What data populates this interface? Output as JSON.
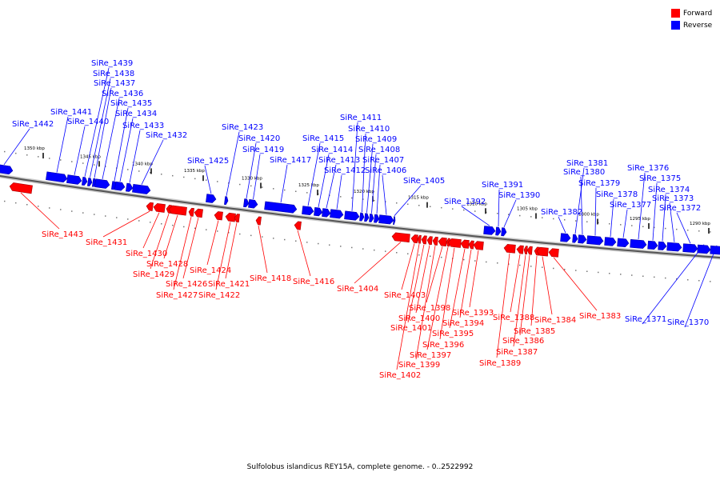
{
  "caption": "Sulfolobus islandicus REY15A, complete genome. - 0..2522992",
  "colors": {
    "forward": "#ff0000",
    "reverse": "#0000ff",
    "backbone": "#808080",
    "leader": "#000000"
  },
  "legend": [
    {
      "label": "Forward",
      "color": "#ff0000"
    },
    {
      "label": "Reverse",
      "color": "#0000ff"
    }
  ],
  "scale": [
    {
      "label": "1350 kbp"
    },
    {
      "label": "1345 kbp"
    },
    {
      "label": "1340 kbp"
    },
    {
      "label": "1335 kbp"
    },
    {
      "label": "1330 kbp"
    },
    {
      "label": "1325 kbp"
    },
    {
      "label": "1320 kbp"
    },
    {
      "label": "1315 kbp"
    },
    {
      "label": "1310 kbp"
    },
    {
      "label": "1305 kbp"
    },
    {
      "label": "1300 kbp"
    },
    {
      "label": "1295 kbp"
    },
    {
      "label": "1290 kbp"
    }
  ],
  "genes": [
    {
      "label": "SiRe_1443",
      "strand": "forward"
    },
    {
      "label": "SiRe_1442",
      "strand": "reverse"
    },
    {
      "label": "SiRe_1441",
      "strand": "reverse"
    },
    {
      "label": "SiRe_1440",
      "strand": "reverse"
    },
    {
      "label": "SiRe_1439",
      "strand": "reverse"
    },
    {
      "label": "SiRe_1438",
      "strand": "reverse"
    },
    {
      "label": "SiRe_1437",
      "strand": "reverse"
    },
    {
      "label": "SiRe_1436",
      "strand": "reverse"
    },
    {
      "label": "SiRe_1435",
      "strand": "reverse"
    },
    {
      "label": "SiRe_1434",
      "strand": "reverse"
    },
    {
      "label": "SiRe_1433",
      "strand": "reverse"
    },
    {
      "label": "SiRe_1432",
      "strand": "reverse"
    },
    {
      "label": "SiRe_1431",
      "strand": "forward"
    },
    {
      "label": "SiRe_1430",
      "strand": "forward"
    },
    {
      "label": "SiRe_1429",
      "strand": "forward"
    },
    {
      "label": "SiRe_1428",
      "strand": "forward"
    },
    {
      "label": "SiRe_1427",
      "strand": "forward"
    },
    {
      "label": "SiRe_1426",
      "strand": "forward"
    },
    {
      "label": "SiRe_1425",
      "strand": "reverse"
    },
    {
      "label": "SiRe_1424",
      "strand": "forward"
    },
    {
      "label": "SiRe_1423",
      "strand": "reverse"
    },
    {
      "label": "SiRe_1422",
      "strand": "forward"
    },
    {
      "label": "SiRe_1421",
      "strand": "forward"
    },
    {
      "label": "SiRe_1420",
      "strand": "reverse"
    },
    {
      "label": "SiRe_1419",
      "strand": "reverse"
    },
    {
      "label": "SiRe_1418",
      "strand": "forward"
    },
    {
      "label": "SiRe_1417",
      "strand": "reverse"
    },
    {
      "label": "SiRe_1416",
      "strand": "forward"
    },
    {
      "label": "SiRe_1415",
      "strand": "reverse"
    },
    {
      "label": "SiRe_1414",
      "strand": "reverse"
    },
    {
      "label": "SiRe_1413",
      "strand": "reverse"
    },
    {
      "label": "SiRe_1412",
      "strand": "reverse"
    },
    {
      "label": "SiRe_1411",
      "strand": "reverse"
    },
    {
      "label": "SiRe_1410",
      "strand": "reverse"
    },
    {
      "label": "SiRe_1409",
      "strand": "reverse"
    },
    {
      "label": "SiRe_1408",
      "strand": "reverse"
    },
    {
      "label": "SiRe_1407",
      "strand": "reverse"
    },
    {
      "label": "SiRe_1406",
      "strand": "reverse"
    },
    {
      "label": "SiRe_1405",
      "strand": "reverse"
    },
    {
      "label": "SiRe_1404",
      "strand": "forward"
    },
    {
      "label": "SiRe_1403",
      "strand": "forward"
    },
    {
      "label": "SiRe_1402",
      "strand": "forward"
    },
    {
      "label": "SiRe_1401",
      "strand": "forward"
    },
    {
      "label": "SiRe_1400",
      "strand": "forward"
    },
    {
      "label": "SiRe_1399",
      "strand": "forward"
    },
    {
      "label": "SiRe_1398",
      "strand": "forward"
    },
    {
      "label": "SiRe_1397",
      "strand": "forward"
    },
    {
      "label": "SiRe_1396",
      "strand": "forward"
    },
    {
      "label": "SiRe_1395",
      "strand": "forward"
    },
    {
      "label": "SiRe_1394",
      "strand": "forward"
    },
    {
      "label": "SiRe_1393",
      "strand": "forward"
    },
    {
      "label": "SiRe_1392",
      "strand": "reverse"
    },
    {
      "label": "SiRe_1391",
      "strand": "reverse"
    },
    {
      "label": "SiRe_1390",
      "strand": "reverse"
    },
    {
      "label": "SiRe_1389",
      "strand": "forward"
    },
    {
      "label": "SiRe_1388",
      "strand": "forward"
    },
    {
      "label": "SiRe_1387",
      "strand": "forward"
    },
    {
      "label": "SiRe_1386",
      "strand": "forward"
    },
    {
      "label": "SiRe_1385",
      "strand": "forward"
    },
    {
      "label": "SiRe_1384",
      "strand": "forward"
    },
    {
      "label": "SiRe_1383",
      "strand": "forward"
    },
    {
      "label": "SiRe_1382",
      "strand": "reverse"
    },
    {
      "label": "SiRe_1381",
      "strand": "reverse"
    },
    {
      "label": "SiRe_1380",
      "strand": "reverse"
    },
    {
      "label": "SiRe_1379",
      "strand": "reverse"
    },
    {
      "label": "SiRe_1378",
      "strand": "reverse"
    },
    {
      "label": "SiRe_1377",
      "strand": "reverse"
    },
    {
      "label": "SiRe_1376",
      "strand": "reverse"
    },
    {
      "label": "SiRe_1375",
      "strand": "reverse"
    },
    {
      "label": "SiRe_1374",
      "strand": "reverse"
    },
    {
      "label": "SiRe_1373",
      "strand": "reverse"
    },
    {
      "label": "SiRe_1372",
      "strand": "reverse"
    },
    {
      "label": "SiRe_1371",
      "strand": "reverse"
    },
    {
      "label": "SiRe_1370",
      "strand": "reverse"
    }
  ]
}
